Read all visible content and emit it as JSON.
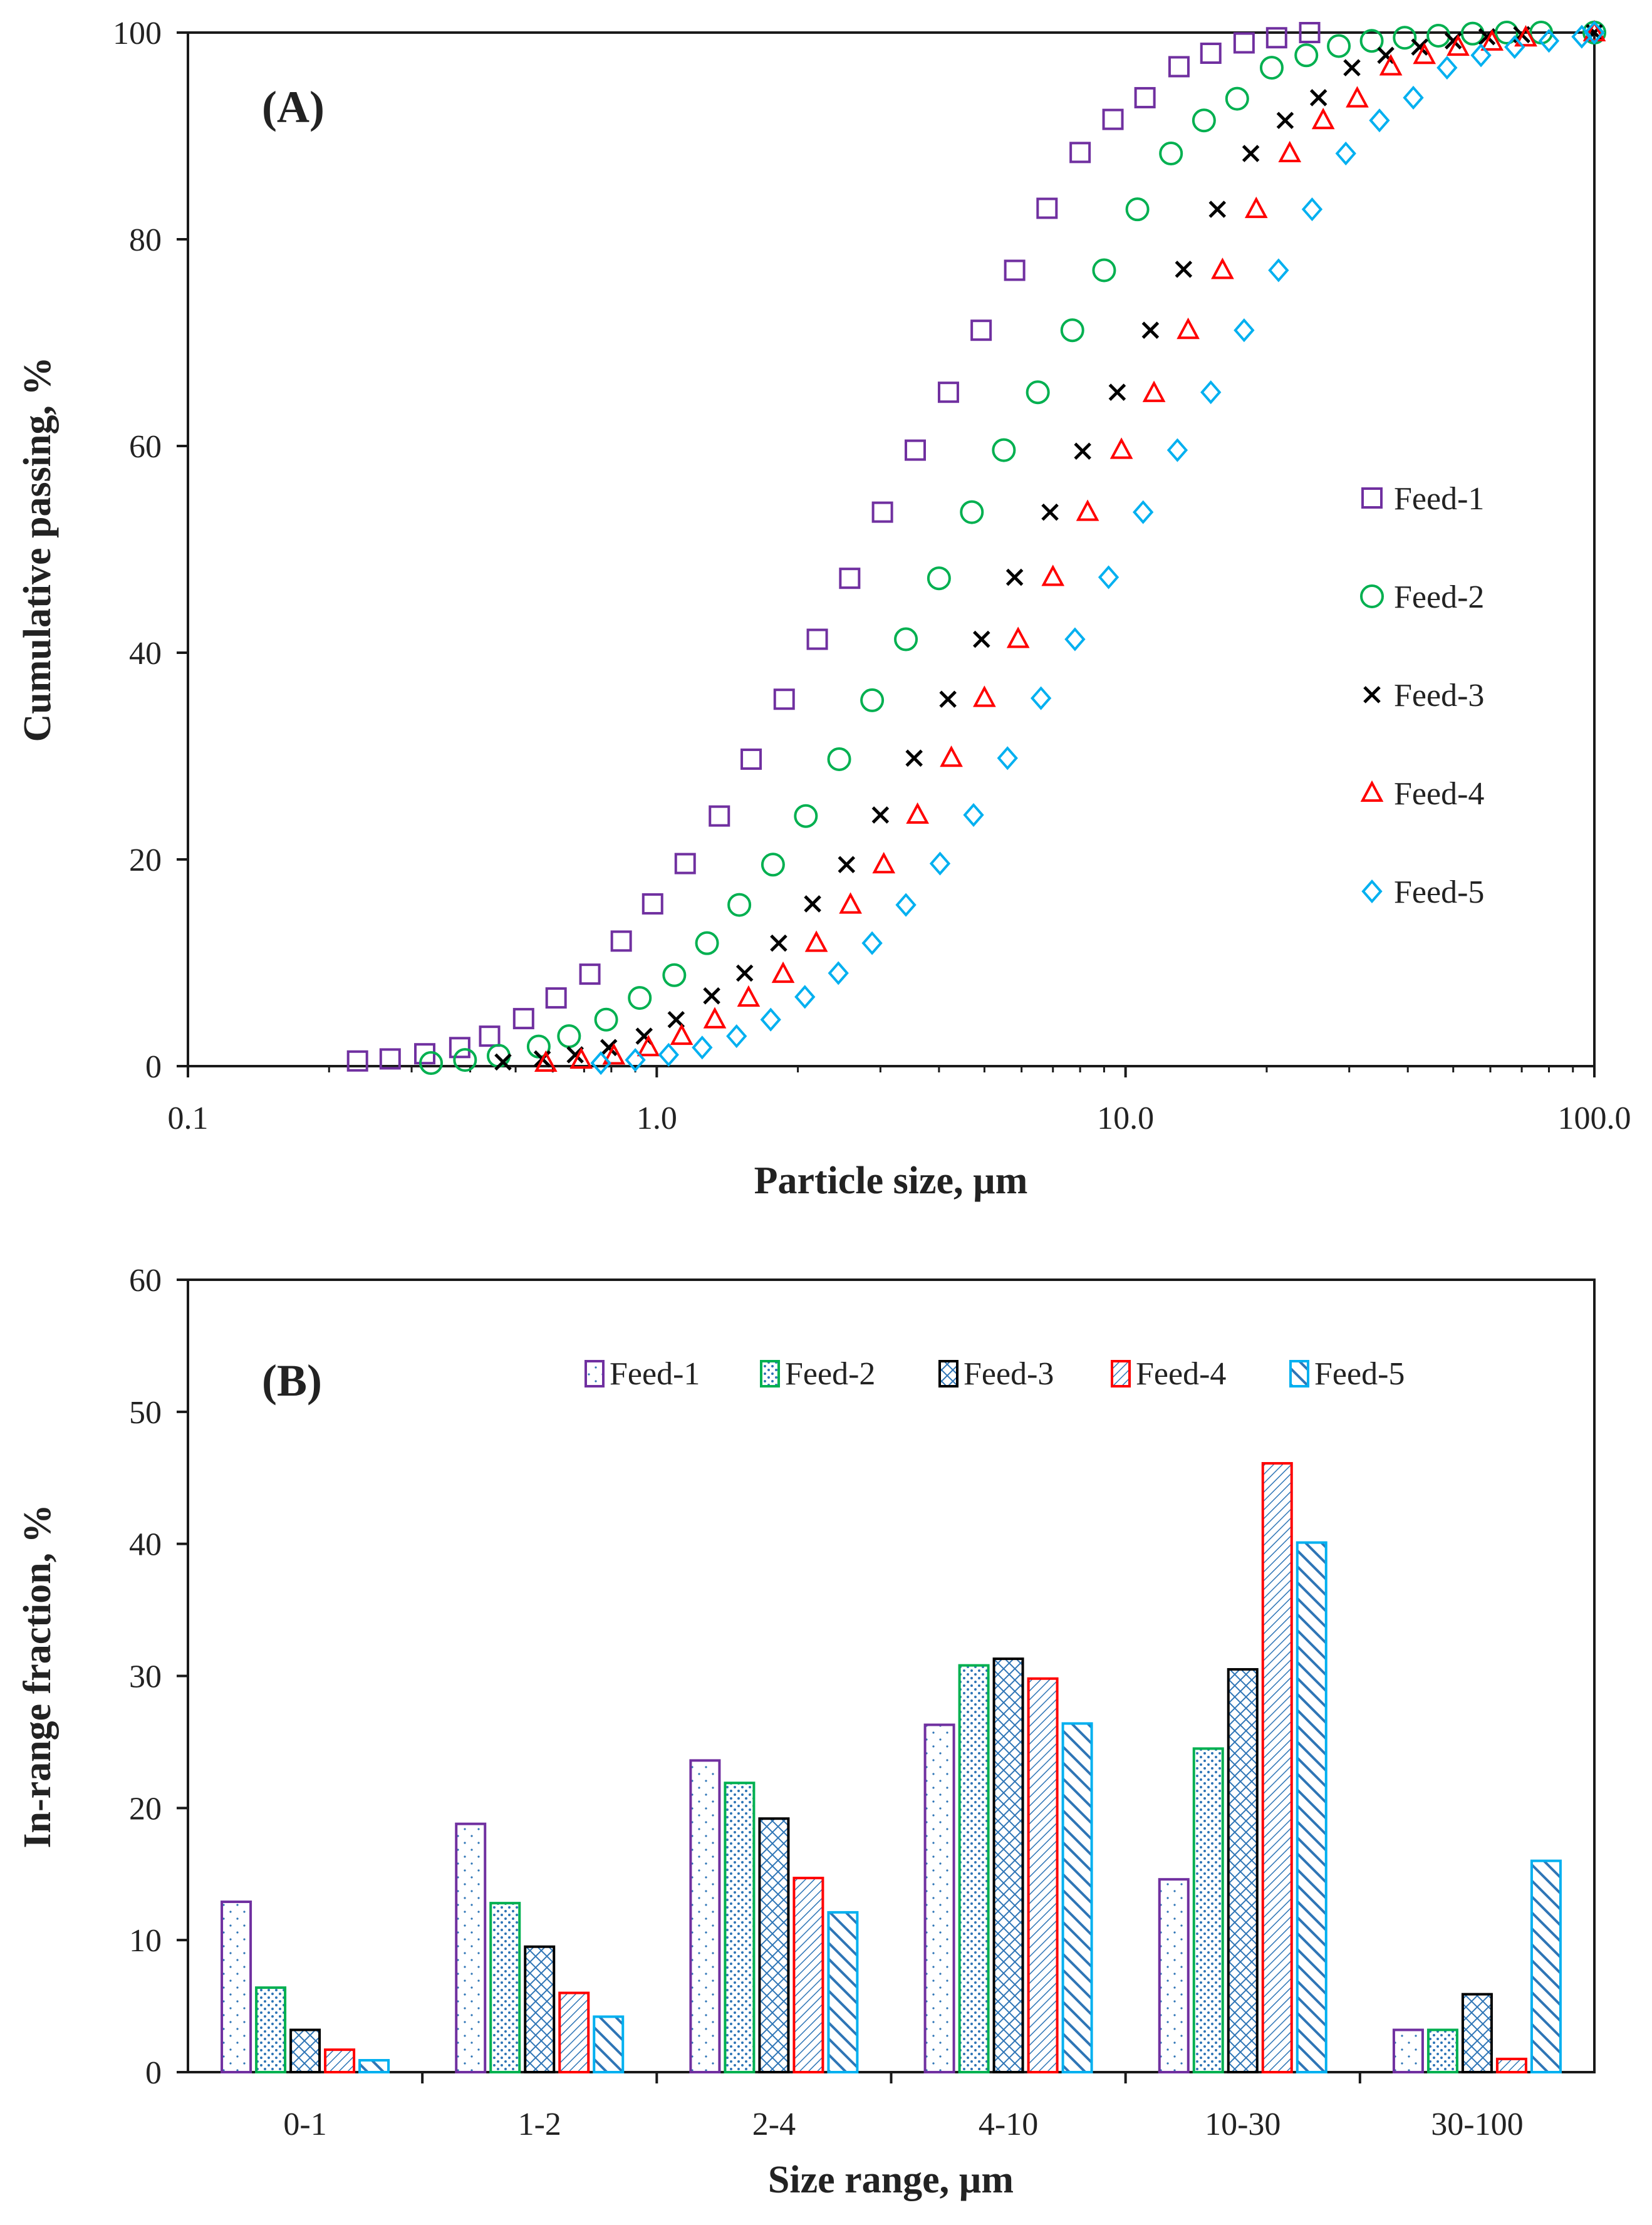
{
  "chart_data": [
    {
      "type": "scatter",
      "panel_label": "(A)",
      "xlabel": "Particle size, µm",
      "ylabel": "Cumulative passing, %",
      "xscale": "log",
      "xlim": [
        0.1,
        100
      ],
      "ylim": [
        0,
        100
      ],
      "xticks": [
        0.1,
        1,
        10,
        100
      ],
      "xtick_labels": [
        "0.1",
        "1.0",
        "10.0",
        "100.0"
      ],
      "yticks": [
        0,
        20,
        40,
        60,
        80,
        100
      ],
      "ytick_labels": [
        "0",
        "20",
        "40",
        "60",
        "80",
        "100"
      ],
      "grid": false,
      "legend_position": "right",
      "series": [
        {
          "name": "Feed-1",
          "marker": "square",
          "color": "#7030A0",
          "x": [
            0.23,
            0.27,
            0.32,
            0.38,
            0.44,
            0.52,
            0.61,
            0.72,
            0.84,
            0.98,
            1.15,
            1.36,
            1.59,
            1.87,
            2.2,
            2.58,
            3.03,
            3.56,
            4.19,
            4.92,
            5.8,
            6.8,
            8.0,
            9.4,
            11.0,
            13.0,
            15.2,
            17.9,
            21.0,
            24.7
          ],
          "y": [
            0.5,
            0.7,
            1.2,
            1.8,
            2.9,
            4.6,
            6.6,
            8.9,
            12.1,
            15.7,
            19.6,
            24.2,
            29.7,
            35.5,
            41.3,
            47.2,
            53.6,
            59.6,
            65.2,
            71.2,
            77.0,
            83.0,
            88.4,
            91.6,
            93.7,
            96.7,
            98.0,
            99.0,
            99.5,
            100
          ]
        },
        {
          "name": "Feed-2",
          "marker": "circle",
          "color": "#00B050",
          "x": [
            0.33,
            0.39,
            0.46,
            0.56,
            0.65,
            0.78,
            0.92,
            1.09,
            1.28,
            1.5,
            1.77,
            2.08,
            2.45,
            2.88,
            3.4,
            4.0,
            4.7,
            5.5,
            6.5,
            7.7,
            9.0,
            10.6,
            12.5,
            14.7,
            17.3,
            20.5,
            24.3,
            28.5,
            33.5,
            39.4,
            46.5,
            55,
            65,
            77,
            100
          ],
          "y": [
            0.3,
            0.6,
            1.0,
            1.9,
            2.9,
            4.5,
            6.6,
            8.8,
            11.9,
            15.6,
            19.5,
            24.2,
            29.7,
            35.4,
            41.3,
            47.2,
            53.6,
            59.6,
            65.2,
            71.2,
            77.0,
            82.9,
            88.3,
            91.5,
            93.6,
            96.6,
            97.8,
            98.7,
            99.2,
            99.5,
            99.7,
            99.9,
            100,
            100,
            100
          ]
        },
        {
          "name": "Feed-3",
          "marker": "x",
          "color": "#000000",
          "x": [
            0.47,
            0.57,
            0.67,
            0.79,
            0.94,
            1.1,
            1.31,
            1.54,
            1.82,
            2.15,
            2.54,
            3.0,
            3.54,
            4.18,
            4.93,
            5.8,
            6.9,
            8.1,
            9.6,
            11.3,
            13.3,
            15.7,
            18.5,
            21.9,
            25.8,
            30.4,
            35.9,
            42.4,
            50,
            59,
            70,
            100
          ],
          "y": [
            0.4,
            0.7,
            1.1,
            1.8,
            2.9,
            4.5,
            6.8,
            9.0,
            11.9,
            15.7,
            19.5,
            24.3,
            29.8,
            35.5,
            41.3,
            47.3,
            53.6,
            59.5,
            65.2,
            71.2,
            77.1,
            82.9,
            88.3,
            91.5,
            93.7,
            96.6,
            97.8,
            98.6,
            99.2,
            99.6,
            99.8,
            100
          ]
        },
        {
          "name": "Feed-4",
          "marker": "triangle",
          "color": "#FF0000",
          "x": [
            0.58,
            0.69,
            0.81,
            0.96,
            1.13,
            1.33,
            1.57,
            1.86,
            2.19,
            2.59,
            3.05,
            3.6,
            4.25,
            5.0,
            5.9,
            7.0,
            8.3,
            9.8,
            11.5,
            13.6,
            16.1,
            19.0,
            22.4,
            26.4,
            31.2,
            36.8,
            43.4,
            51.2,
            60.5,
            71.4,
            100
          ],
          "y": [
            0.3,
            0.6,
            1.0,
            1.8,
            2.9,
            4.5,
            6.6,
            8.9,
            11.9,
            15.6,
            19.5,
            24.3,
            29.8,
            35.6,
            41.3,
            47.3,
            53.6,
            59.6,
            65.1,
            71.2,
            77.0,
            82.9,
            88.3,
            91.5,
            93.6,
            96.7,
            97.8,
            98.6,
            99.1,
            99.5,
            100
          ]
        },
        {
          "name": "Feed-5",
          "marker": "diamond",
          "color": "#00B0F0",
          "x": [
            0.76,
            0.9,
            1.06,
            1.25,
            1.48,
            1.75,
            2.07,
            2.44,
            2.88,
            3.4,
            4.02,
            4.74,
            5.6,
            6.6,
            7.8,
            9.2,
            10.9,
            12.9,
            15.2,
            17.9,
            21.2,
            25.0,
            29.5,
            34.8,
            41.1,
            48.5,
            57.3,
            67.6,
            80,
            94,
            100
          ],
          "y": [
            0.3,
            0.6,
            1.1,
            1.8,
            2.9,
            4.5,
            6.7,
            9.0,
            11.9,
            15.6,
            19.6,
            24.3,
            29.8,
            35.6,
            41.3,
            47.3,
            53.6,
            59.6,
            65.2,
            71.2,
            77.0,
            82.9,
            88.3,
            91.5,
            93.7,
            96.6,
            97.8,
            98.6,
            99.2,
            99.6,
            100
          ]
        }
      ]
    },
    {
      "type": "bar",
      "panel_label": "(B)",
      "xlabel": "Size range, µm",
      "ylabel": "In-range fraction, %",
      "ylim": [
        0,
        60
      ],
      "yticks": [
        0,
        10,
        20,
        30,
        40,
        50,
        60
      ],
      "ytick_labels": [
        "0",
        "10",
        "20",
        "30",
        "40",
        "50",
        "60"
      ],
      "grid": false,
      "legend_position": "top",
      "categories": [
        "0-1",
        "1-2",
        "2-4",
        "4-10",
        "10-30",
        "30-100"
      ],
      "series": [
        {
          "name": "Feed-1",
          "color": "#7030A0",
          "pattern": "dots",
          "values": [
            12.9,
            18.8,
            23.6,
            26.3,
            14.6,
            3.2
          ]
        },
        {
          "name": "Feed-2",
          "color": "#00B050",
          "pattern": "dense-dots",
          "values": [
            6.4,
            12.8,
            21.9,
            30.8,
            24.5,
            3.2
          ]
        },
        {
          "name": "Feed-3",
          "color": "#000000",
          "pattern": "crosshatch",
          "values": [
            3.2,
            9.5,
            19.2,
            31.3,
            30.5,
            5.9
          ]
        },
        {
          "name": "Feed-4",
          "color": "#FF0000",
          "pattern": "diagonal-fine",
          "values": [
            1.7,
            6.0,
            14.7,
            29.8,
            46.1,
            1.0
          ]
        },
        {
          "name": "Feed-5",
          "color": "#00B0F0",
          "pattern": "diagonal-wide",
          "values": [
            0.9,
            4.2,
            12.1,
            26.4,
            40.1,
            16.0
          ]
        }
      ]
    }
  ]
}
